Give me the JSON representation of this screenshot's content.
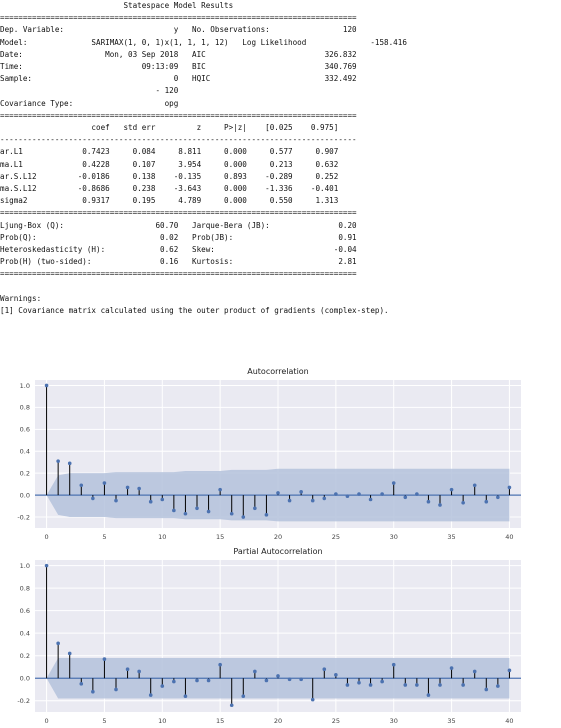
{
  "summary": {
    "title": "Statespace Model Results",
    "header_rows": [
      {
        "left_label": "Dep. Variable:",
        "left_value": "y",
        "right_label": "No. Observations:",
        "right_value": "120"
      },
      {
        "left_label": "Model:",
        "left_value": "SARIMAX(1, 0, 1)x(1, 1, 1, 12)",
        "right_label": "Log Likelihood",
        "right_value": "-158.416"
      },
      {
        "left_label": "Date:",
        "left_value": "Mon, 03 Sep 2018",
        "right_label": "AIC",
        "right_value": "326.832"
      },
      {
        "left_label": "Time:",
        "left_value": "09:13:09",
        "right_label": "BIC",
        "right_value": "340.769"
      },
      {
        "left_label": "Sample:",
        "left_value": "0",
        "right_label": "HQIC",
        "right_value": "332.492"
      },
      {
        "left_label": "",
        "left_value": "- 120",
        "right_label": "",
        "right_value": ""
      },
      {
        "left_label": "Covariance Type:",
        "left_value": "opg",
        "right_label": "",
        "right_value": ""
      }
    ],
    "coef_headers": [
      "coef",
      "std err",
      "z",
      "P>|z|",
      "[0.025",
      "0.975]"
    ],
    "coef_rows": [
      {
        "name": "ar.L1",
        "values": [
          "0.7423",
          "0.084",
          "8.811",
          "0.000",
          "0.577",
          "0.907"
        ]
      },
      {
        "name": "ma.L1",
        "values": [
          "0.4228",
          "0.107",
          "3.954",
          "0.000",
          "0.213",
          "0.632"
        ]
      },
      {
        "name": "ar.S.L12",
        "values": [
          "-0.0186",
          "0.138",
          "-0.135",
          "0.893",
          "-0.289",
          "0.252"
        ]
      },
      {
        "name": "ma.S.L12",
        "values": [
          "-0.8686",
          "0.238",
          "-3.643",
          "0.000",
          "-1.336",
          "-0.401"
        ]
      },
      {
        "name": "sigma2",
        "values": [
          "0.9317",
          "0.195",
          "4.789",
          "0.000",
          "0.550",
          "1.313"
        ]
      }
    ],
    "diag_rows": [
      {
        "left_label": "Ljung-Box (Q):",
        "left_value": "60.70",
        "right_label": "Jarque-Bera (JB):",
        "right_value": "0.20"
      },
      {
        "left_label": "Prob(Q):",
        "left_value": "0.02",
        "right_label": "Prob(JB):",
        "right_value": "0.91"
      },
      {
        "left_label": "Heteroskedasticity (H):",
        "left_value": "0.62",
        "right_label": "Skew:",
        "right_value": "-0.04"
      },
      {
        "left_label": "Prob(H) (two-sided):",
        "left_value": "0.16",
        "right_label": "Kurtosis:",
        "right_value": "2.81"
      }
    ],
    "warnings_title": "Warnings:",
    "warnings": [
      "[1] Covariance matrix calculated using the outer product of gradients (complex-step)."
    ]
  },
  "colors": {
    "plot_bg": "#eaeaf2",
    "grid": "#ffffff",
    "confint": "#b4c2dc",
    "zero_line": "#4c72b0",
    "stem": "#000000",
    "marker": "#4c72b0"
  },
  "chart_data": [
    {
      "type": "stem",
      "title": "Autocorrelation",
      "xlabel": "",
      "ylabel": "",
      "xlim": [
        -1,
        41
      ],
      "ylim": [
        -0.3,
        1.05
      ],
      "xticks": [
        0,
        5,
        10,
        15,
        20,
        25,
        30,
        35,
        40
      ],
      "yticks": [
        "-0.2",
        "0.0",
        "0.2",
        "0.4",
        "0.6",
        "0.8",
        "1.0"
      ],
      "grid": true,
      "x": [
        0,
        1,
        2,
        3,
        4,
        5,
        6,
        7,
        8,
        9,
        10,
        11,
        12,
        13,
        14,
        15,
        16,
        17,
        18,
        19,
        20,
        21,
        22,
        23,
        24,
        25,
        26,
        27,
        28,
        29,
        30,
        31,
        32,
        33,
        34,
        35,
        36,
        37,
        38,
        39,
        40
      ],
      "values": [
        1.0,
        0.31,
        0.29,
        0.09,
        -0.03,
        0.11,
        -0.05,
        0.07,
        0.06,
        -0.06,
        -0.04,
        -0.14,
        -0.17,
        -0.12,
        -0.15,
        0.05,
        -0.17,
        -0.2,
        -0.12,
        -0.18,
        0.02,
        -0.05,
        0.03,
        -0.05,
        -0.03,
        0.01,
        -0.01,
        0.01,
        -0.04,
        0.01,
        0.11,
        -0.02,
        0.01,
        -0.06,
        -0.09,
        0.05,
        -0.07,
        0.09,
        -0.06,
        -0.02,
        0.07
      ],
      "confint_upper": [
        0,
        0.18,
        0.2,
        0.2,
        0.2,
        0.2,
        0.21,
        0.21,
        0.21,
        0.21,
        0.21,
        0.21,
        0.22,
        0.22,
        0.22,
        0.22,
        0.23,
        0.23,
        0.23,
        0.23,
        0.24,
        0.24,
        0.24,
        0.24,
        0.24,
        0.24,
        0.24,
        0.24,
        0.24,
        0.24,
        0.24,
        0.24,
        0.24,
        0.24,
        0.24,
        0.24,
        0.24,
        0.24,
        0.24,
        0.24,
        0.24
      ]
    },
    {
      "type": "stem",
      "title": "Partial Autocorrelation",
      "xlabel": "",
      "ylabel": "",
      "xlim": [
        -1,
        41
      ],
      "ylim": [
        -0.3,
        1.05
      ],
      "xticks": [
        0,
        5,
        10,
        15,
        20,
        25,
        30,
        35,
        40
      ],
      "yticks": [
        "-0.2",
        "0.0",
        "0.2",
        "0.4",
        "0.6",
        "0.8",
        "1.0"
      ],
      "grid": true,
      "x": [
        0,
        1,
        2,
        3,
        4,
        5,
        6,
        7,
        8,
        9,
        10,
        11,
        12,
        13,
        14,
        15,
        16,
        17,
        18,
        19,
        20,
        21,
        22,
        23,
        24,
        25,
        26,
        27,
        28,
        29,
        30,
        31,
        32,
        33,
        34,
        35,
        36,
        37,
        38,
        39,
        40
      ],
      "values": [
        1.0,
        0.31,
        0.22,
        -0.05,
        -0.12,
        0.17,
        -0.1,
        0.08,
        0.06,
        -0.15,
        -0.07,
        -0.03,
        -0.16,
        -0.02,
        -0.02,
        0.12,
        -0.24,
        -0.16,
        0.06,
        -0.02,
        0.02,
        -0.01,
        -0.01,
        -0.19,
        0.08,
        0.03,
        -0.06,
        -0.04,
        -0.06,
        -0.03,
        0.12,
        -0.06,
        -0.06,
        -0.15,
        -0.06,
        0.09,
        -0.06,
        0.06,
        -0.1,
        -0.07,
        0.07
      ],
      "confint_upper": [
        0,
        0.18,
        0.18,
        0.18,
        0.18,
        0.18,
        0.18,
        0.18,
        0.18,
        0.18,
        0.18,
        0.18,
        0.18,
        0.18,
        0.18,
        0.18,
        0.18,
        0.18,
        0.18,
        0.18,
        0.18,
        0.18,
        0.18,
        0.18,
        0.18,
        0.18,
        0.18,
        0.18,
        0.18,
        0.18,
        0.18,
        0.18,
        0.18,
        0.18,
        0.18,
        0.18,
        0.18,
        0.18,
        0.18,
        0.18,
        0.18
      ]
    }
  ]
}
